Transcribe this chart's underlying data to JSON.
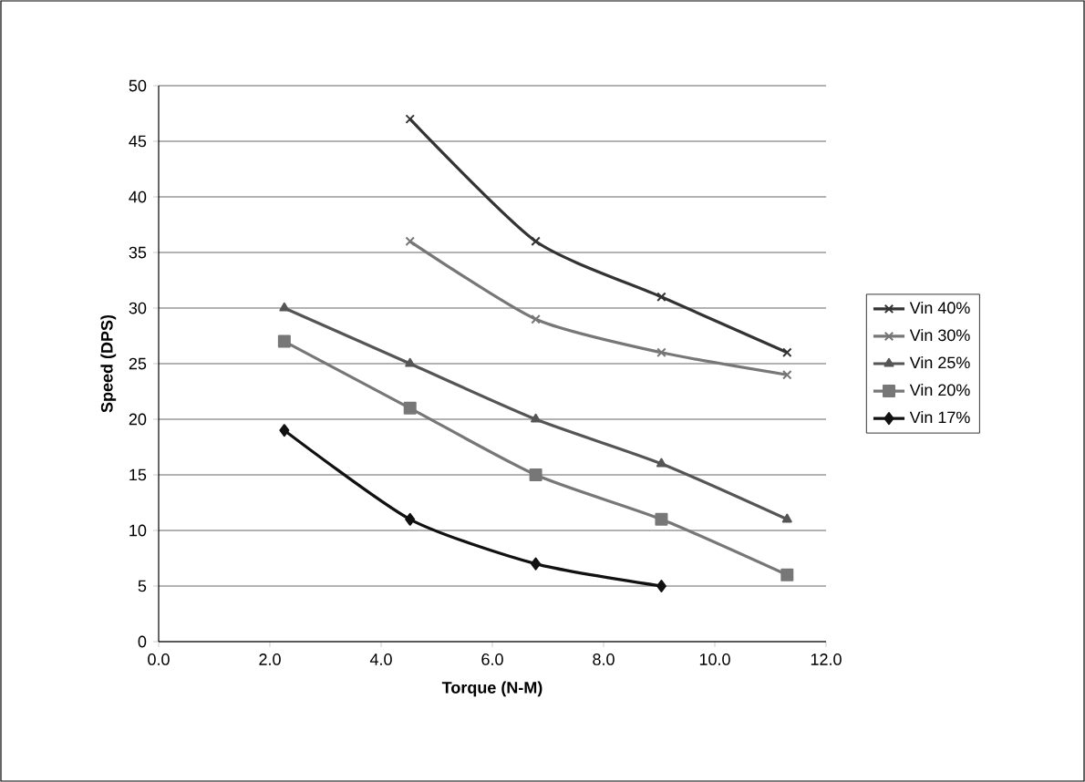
{
  "chart_data": {
    "type": "line",
    "xlabel": "Torque (N-M)",
    "ylabel": "Speed (DPS)",
    "xlim": [
      0,
      12
    ],
    "xticks": [
      {
        "value": 0,
        "label": "0.0"
      },
      {
        "value": 2,
        "label": "2.0"
      },
      {
        "value": 4,
        "label": "4.0"
      },
      {
        "value": 6,
        "label": "6.0"
      },
      {
        "value": 8,
        "label": "8.0"
      },
      {
        "value": 10,
        "label": "10.0"
      },
      {
        "value": 12,
        "label": "12.0"
      }
    ],
    "ylim": [
      0,
      50
    ],
    "yticks": [
      0,
      5,
      10,
      15,
      20,
      25,
      30,
      35,
      40,
      45,
      50
    ],
    "grid": "y",
    "legend": "right",
    "series": [
      {
        "name": "Vin 40%",
        "color": "#333333",
        "marker": "cross",
        "x": [
          4.52,
          6.78,
          9.04,
          11.3
        ],
        "values": [
          47,
          36,
          31,
          26
        ]
      },
      {
        "name": "Vin 30%",
        "color": "#777777",
        "marker": "cross",
        "x": [
          4.52,
          6.78,
          9.04,
          11.3
        ],
        "values": [
          36,
          29,
          26,
          24
        ]
      },
      {
        "name": "Vin 25%",
        "color": "#555555",
        "marker": "triangle",
        "x": [
          2.26,
          4.52,
          6.78,
          9.04,
          11.3
        ],
        "values": [
          30,
          25,
          20,
          16,
          11
        ]
      },
      {
        "name": "Vin 20%",
        "color": "#777777",
        "marker": "square",
        "x": [
          2.26,
          4.52,
          6.78,
          9.04,
          11.3
        ],
        "values": [
          27,
          21,
          15,
          11,
          6
        ]
      },
      {
        "name": "Vin 17%",
        "color": "#111111",
        "marker": "diamond",
        "x": [
          2.26,
          4.52,
          6.78,
          9.04
        ],
        "values": [
          19,
          11,
          7,
          5
        ]
      }
    ]
  }
}
